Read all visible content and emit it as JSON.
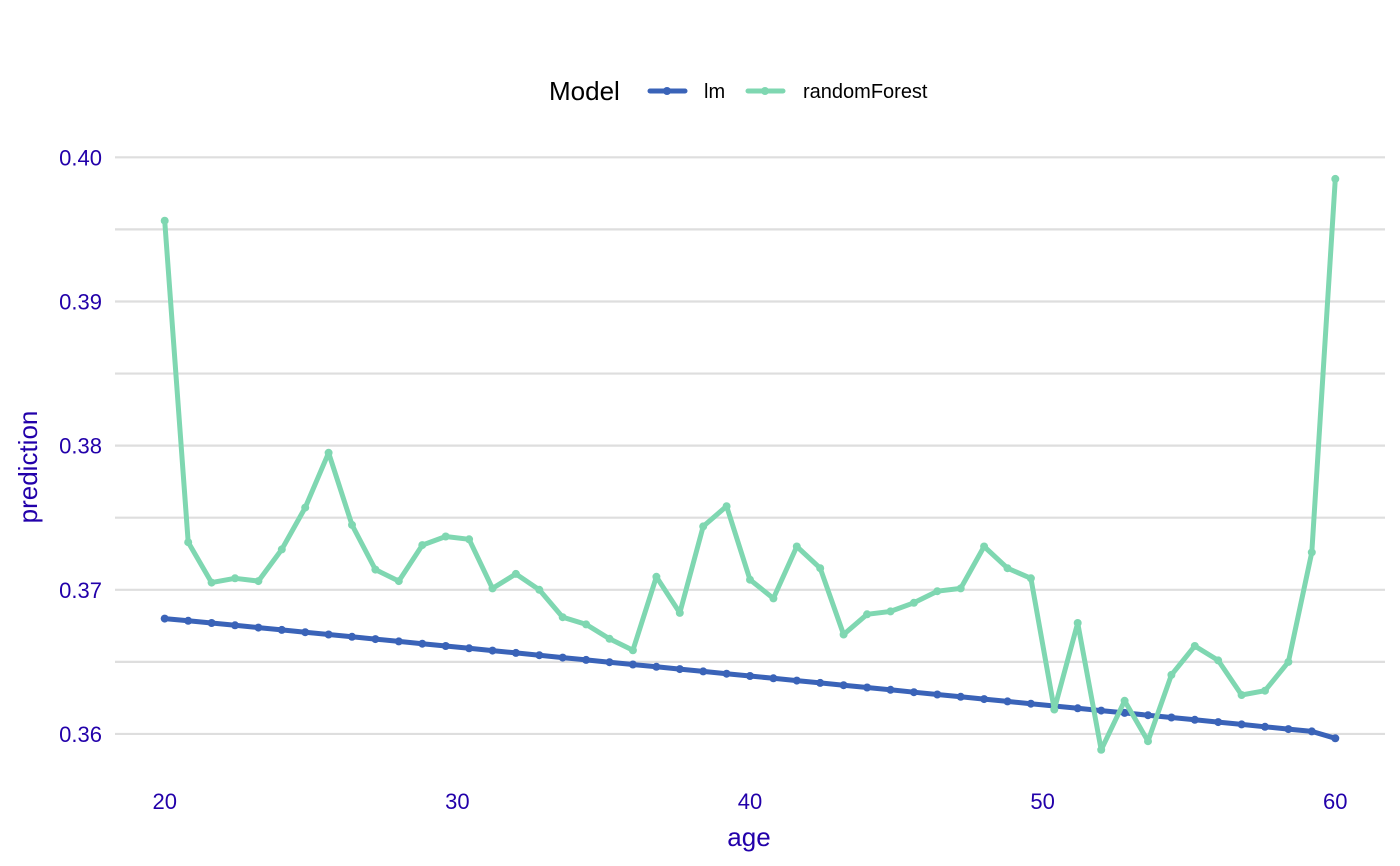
{
  "chart_data": {
    "type": "line",
    "xlabel": "age",
    "ylabel": "prediction",
    "xlim": [
      18.3,
      61.7
    ],
    "ylim": [
      0.3575,
      0.4012
    ],
    "x_ticks": [
      "20",
      "30",
      "40",
      "50",
      "60"
    ],
    "x_tick_values": [
      20,
      30,
      40,
      50,
      60
    ],
    "y_ticks": [
      "0.36",
      "0.37",
      "0.38",
      "0.39",
      "0.40"
    ],
    "y_tick_values": [
      0.36,
      0.37,
      0.38,
      0.39,
      0.4
    ],
    "y_minor_values": [
      0.365,
      0.375,
      0.385,
      0.395
    ],
    "grid": true,
    "legend_position": "top",
    "legend_title": "Model",
    "x": [
      20.0,
      20.8,
      21.6,
      22.4,
      23.2,
      24.0,
      24.8,
      25.6,
      26.4,
      27.2,
      28.0,
      28.8,
      29.6,
      30.4,
      31.2,
      32.0,
      32.8,
      33.6,
      34.4,
      35.2,
      36.0,
      36.8,
      37.6,
      38.4,
      39.2,
      40.0,
      40.8,
      41.6,
      42.4,
      43.2,
      44.0,
      44.8,
      45.6,
      46.4,
      47.2,
      48.0,
      48.8,
      49.6,
      50.4,
      51.2,
      52.0,
      52.8,
      53.6,
      54.4,
      55.2,
      56.0,
      56.8,
      57.6,
      58.4,
      59.2,
      60.0
    ],
    "series": [
      {
        "name": "lm",
        "color": "#3a63b8",
        "values": [
          0.368,
          0.36785,
          0.3677,
          0.36754,
          0.36738,
          0.36722,
          0.36706,
          0.3669,
          0.36674,
          0.36658,
          0.36642,
          0.36626,
          0.3661,
          0.36594,
          0.36578,
          0.36562,
          0.36546,
          0.3653,
          0.36514,
          0.36498,
          0.36482,
          0.36466,
          0.3645,
          0.36434,
          0.36418,
          0.36402,
          0.36386,
          0.3637,
          0.36354,
          0.36338,
          0.36322,
          0.36306,
          0.3629,
          0.36274,
          0.36258,
          0.36242,
          0.36226,
          0.3621,
          0.36194,
          0.36178,
          0.36162,
          0.36146,
          0.3613,
          0.36114,
          0.36098,
          0.36082,
          0.36066,
          0.3605,
          0.36034,
          0.36018,
          0.3597
        ]
      },
      {
        "name": "randomForest",
        "color": "#7fd7b1",
        "values": [
          0.3956,
          0.3733,
          0.3705,
          0.3708,
          0.3706,
          0.3728,
          0.3757,
          0.3795,
          0.3745,
          0.3714,
          0.3706,
          0.3731,
          0.3737,
          0.3735,
          0.3701,
          0.3711,
          0.37,
          0.3681,
          0.3676,
          0.3666,
          0.3658,
          0.3709,
          0.3684,
          0.3744,
          0.3758,
          0.3707,
          0.3694,
          0.373,
          0.3715,
          0.3669,
          0.3683,
          0.3685,
          0.3691,
          0.3699,
          0.3701,
          0.373,
          0.3715,
          0.3708,
          0.3617,
          0.3677,
          0.3589,
          0.3623,
          0.3595,
          0.3641,
          0.3661,
          0.3651,
          0.3627,
          0.363,
          0.365,
          0.3726,
          0.3985
        ]
      }
    ]
  },
  "colors": {
    "grid": "#dedede",
    "tick_text": "#2200aa",
    "axis_title": "#2200aa"
  }
}
